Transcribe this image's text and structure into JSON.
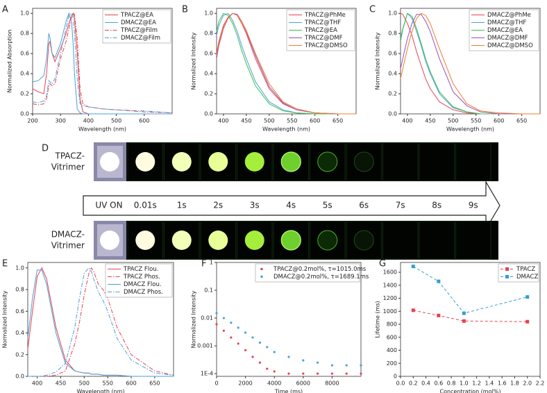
{
  "chart_data": [
    {
      "type": "line",
      "panel": "A",
      "xlabel": "Wavelength (nm)",
      "ylabel": "Normalized Absorption",
      "x": [
        200,
        220,
        240,
        250,
        258,
        262,
        270,
        280,
        300,
        320,
        330,
        340,
        345,
        350,
        360,
        370,
        380,
        400,
        450,
        500,
        600,
        700
      ],
      "series": [
        {
          "name": "TPACZ@EA",
          "color": "#e8414e",
          "style": "solid",
          "values": [
            0.25,
            0.22,
            0.2,
            0.4,
            0.7,
            0.72,
            0.6,
            0.52,
            0.65,
            0.8,
            0.9,
            0.98,
            1.0,
            0.95,
            0.6,
            0.15,
            0.02,
            0,
            0,
            0,
            0,
            0
          ]
        },
        {
          "name": "DMACZ@EA",
          "color": "#4a9fd8",
          "style": "solid",
          "values": [
            0.32,
            0.33,
            0.38,
            0.55,
            0.8,
            0.76,
            0.6,
            0.56,
            0.7,
            0.92,
            1.0,
            0.9,
            0.7,
            0.4,
            0.05,
            0.01,
            0,
            0,
            0,
            0,
            0,
            0
          ]
        },
        {
          "name": "TPACZ@Film",
          "color": "#e8414e",
          "style": "dashdot",
          "values": [
            0.1,
            0.09,
            0.1,
            0.15,
            0.28,
            0.3,
            0.28,
            0.3,
            0.55,
            0.72,
            0.85,
            0.97,
            1.0,
            0.99,
            0.75,
            0.25,
            0.1,
            0.07,
            0.05,
            0.04,
            0.02,
            0.01
          ]
        },
        {
          "name": "DMACZ@Film",
          "color": "#4a9fd8",
          "style": "dashdot",
          "values": [
            0.12,
            0.11,
            0.13,
            0.18,
            0.33,
            0.32,
            0.3,
            0.35,
            0.6,
            0.85,
            0.98,
            1.0,
            0.95,
            0.8,
            0.35,
            0.1,
            0.08,
            0.07,
            0.05,
            0.04,
            0.03,
            0.01
          ]
        }
      ],
      "xlim": [
        200,
        700
      ],
      "xticks": [
        200,
        300,
        400,
        500,
        600
      ],
      "ylim": [
        0,
        1.05
      ],
      "yticks": [
        {
          "value": 0,
          "label": "0.0"
        },
        0.2,
        0.4,
        0.6,
        0.8,
        {
          "value": 1,
          "label": "1.0"
        }
      ],
      "legend": "top-right"
    },
    {
      "type": "line",
      "panel": "B",
      "xlabel": "Wavelength (nm)",
      "ylabel": "Normalized Intensity",
      "x": [
        385,
        390,
        400,
        410,
        420,
        430,
        440,
        450,
        470,
        500,
        530,
        560,
        600,
        650,
        690
      ],
      "series": [
        {
          "name": "TPACZ@PhMe",
          "color": "#e8414e",
          "style": "solid",
          "values": [
            0.6,
            0.72,
            0.88,
            0.96,
            1.0,
            0.98,
            0.9,
            0.8,
            0.55,
            0.25,
            0.1,
            0.04,
            0.01,
            0,
            0
          ]
        },
        {
          "name": "TPACZ@THF",
          "color": "#4a9fd8",
          "style": "solid",
          "values": [
            0.78,
            0.88,
            0.98,
            1.0,
            0.93,
            0.82,
            0.68,
            0.55,
            0.32,
            0.12,
            0.04,
            0.01,
            0,
            0,
            0
          ]
        },
        {
          "name": "TPACZ@EA",
          "color": "#3cbf4a",
          "style": "solid",
          "values": [
            0.82,
            0.92,
            1.0,
            0.98,
            0.9,
            0.78,
            0.63,
            0.5,
            0.28,
            0.1,
            0.03,
            0.01,
            0,
            0,
            0
          ]
        },
        {
          "name": "TPACZ@DMF",
          "color": "#9a4fb8",
          "style": "solid",
          "values": [
            0.55,
            0.68,
            0.85,
            0.95,
            1.0,
            0.99,
            0.92,
            0.82,
            0.58,
            0.27,
            0.11,
            0.04,
            0.01,
            0,
            0
          ]
        },
        {
          "name": "TPACZ@DMSO",
          "color": "#f07b2c",
          "style": "solid",
          "values": [
            0.58,
            0.7,
            0.86,
            0.95,
            1.0,
            0.98,
            0.92,
            0.83,
            0.6,
            0.3,
            0.12,
            0.05,
            0.01,
            0,
            0
          ]
        }
      ],
      "xlim": [
        385,
        690
      ],
      "xticks": [
        400,
        450,
        500,
        550,
        600,
        650
      ],
      "ylim": [
        0,
        1.05
      ],
      "yticks": [
        {
          "value": 0,
          "label": "0.0"
        },
        0.2,
        0.4,
        0.6,
        0.8,
        {
          "value": 1,
          "label": "1.0"
        }
      ],
      "legend": "top-right"
    },
    {
      "type": "line",
      "panel": "C",
      "xlabel": "Wavelength (nm)",
      "ylabel": "Normalized Intensity",
      "x": [
        385,
        390,
        400,
        410,
        420,
        430,
        440,
        450,
        470,
        500,
        530,
        560,
        600,
        650,
        690
      ],
      "series": [
        {
          "name": "DMACZ@PhMe",
          "color": "#e8414e",
          "style": "solid",
          "values": [
            1.0,
            0.99,
            0.9,
            0.78,
            0.62,
            0.48,
            0.35,
            0.25,
            0.12,
            0.04,
            0.01,
            0,
            0,
            0,
            0
          ]
        },
        {
          "name": "DMACZ@THF",
          "color": "#4a9fd8",
          "style": "solid",
          "values": [
            0.75,
            0.85,
            1.0,
            0.95,
            0.82,
            0.68,
            0.52,
            0.4,
            0.2,
            0.06,
            0.02,
            0,
            0,
            0,
            0
          ]
        },
        {
          "name": "DMACZ@EA",
          "color": "#3cbf4a",
          "style": "solid",
          "values": [
            0.72,
            0.84,
            1.0,
            0.97,
            0.85,
            0.7,
            0.55,
            0.42,
            0.22,
            0.07,
            0.02,
            0,
            0,
            0,
            0
          ]
        },
        {
          "name": "DMACZ@DMF",
          "color": "#9a4fb8",
          "style": "solid",
          "values": [
            0.45,
            0.55,
            0.75,
            0.9,
            0.99,
            0.99,
            0.92,
            0.82,
            0.55,
            0.22,
            0.08,
            0.02,
            0,
            0,
            0
          ]
        },
        {
          "name": "DMACZ@DMSO",
          "color": "#f07b2c",
          "style": "solid",
          "values": [
            0.35,
            0.45,
            0.65,
            0.82,
            0.95,
            1.0,
            0.98,
            0.9,
            0.65,
            0.3,
            0.1,
            0.03,
            0.01,
            0,
            0
          ]
        }
      ],
      "xlim": [
        385,
        690
      ],
      "xticks": [
        400,
        450,
        500,
        550,
        600,
        650
      ],
      "ylim": [
        0,
        1.05
      ],
      "yticks": [
        {
          "value": 0,
          "label": "0.0"
        },
        0.2,
        0.4,
        0.6,
        0.8,
        {
          "value": 1,
          "label": "1.0"
        }
      ],
      "legend": "top-right"
    },
    {
      "type": "line",
      "panel": "E",
      "xlabel": "Wavelength (nm)",
      "ylabel": "Normalized Intensity",
      "x": [
        380,
        390,
        400,
        410,
        420,
        440,
        460,
        480,
        490,
        500,
        510,
        515,
        520,
        530,
        540,
        550,
        570,
        600,
        650,
        690
      ],
      "series": [
        {
          "name": "TPACZ Flou.",
          "color": "#e8414e",
          "style": "solid",
          "values": [
            0.25,
            0.6,
            0.92,
            1.0,
            0.9,
            0.45,
            0.15,
            0.05,
            0.04,
            0.03,
            0.03,
            0.02,
            0.02,
            0.02,
            0.01,
            0.01,
            0.01,
            0,
            0,
            0
          ]
        },
        {
          "name": "TPACZ Phos.",
          "color": "#e8414e",
          "style": "dashdot",
          "values": [
            0,
            0,
            0,
            0,
            0,
            0.01,
            0.05,
            0.3,
            0.5,
            0.75,
            0.95,
            1.0,
            0.97,
            0.85,
            0.8,
            0.72,
            0.45,
            0.2,
            0.05,
            0.01
          ]
        },
        {
          "name": "DMACZ Flou.",
          "color": "#4a9fd8",
          "style": "solid",
          "values": [
            0.35,
            0.72,
            0.98,
            0.98,
            0.85,
            0.4,
            0.12,
            0.05,
            0.04,
            0.03,
            0.03,
            0.02,
            0.02,
            0.02,
            0.01,
            0.01,
            0.01,
            0,
            0,
            0
          ]
        },
        {
          "name": "DMACZ Phos.",
          "color": "#4a9fd8",
          "style": "dashdot",
          "values": [
            0,
            0,
            0,
            0,
            0.01,
            0.04,
            0.12,
            0.45,
            0.72,
            0.95,
            1.0,
            0.97,
            0.9,
            0.78,
            0.7,
            0.6,
            0.35,
            0.15,
            0.03,
            0.01
          ]
        }
      ],
      "xlim": [
        380,
        690
      ],
      "xticks": [
        400,
        450,
        500,
        550,
        600,
        650
      ],
      "ylim": [
        0,
        1.05
      ],
      "yticks": [
        {
          "value": 0,
          "label": "0.0"
        },
        0.2,
        0.4,
        0.6,
        0.8,
        {
          "value": 1,
          "label": "1.0"
        }
      ],
      "legend": "top-right"
    },
    {
      "type": "scatter",
      "panel": "F",
      "xlabel": "Time (ms)",
      "ylabel": "Normalized Intensity",
      "log_y": true,
      "x": [
        0,
        500,
        1000,
        1500,
        2000,
        2500,
        3000,
        3500,
        4000,
        5000,
        6000,
        7000,
        8000,
        9000,
        10000
      ],
      "series": [
        {
          "name": "TPACZ@0.2mol%, τ=1015.0ms",
          "color": "#e8414e",
          "values": [
            0.006,
            0.0035,
            0.002,
            0.0012,
            0.0007,
            0.0004,
            0.00025,
            0.00015,
            0.00012,
            0.0001,
            0.0001,
            0.0001,
            0.0001,
            0.0001,
            0.0001
          ]
        },
        {
          "name": "DMACZ@0.2mol%, τ=1689.1ms",
          "color": "#4a9fd8",
          "values": [
            0.015,
            0.01,
            0.0068,
            0.0045,
            0.003,
            0.002,
            0.0013,
            0.0009,
            0.0006,
            0.0004,
            0.0003,
            0.00025,
            0.0002,
            0.0002,
            0.0002
          ]
        }
      ],
      "xlim": [
        0,
        10000
      ],
      "xticks": [
        0,
        2000,
        4000,
        6000,
        8000
      ],
      "ylim": [
        8e-05,
        1
      ],
      "yticks": [
        {
          "value": 0.0001,
          "label": "1E-4"
        },
        0.001,
        0.01,
        0.1,
        1
      ],
      "legend": "top-right"
    },
    {
      "type": "line",
      "panel": "G",
      "xlabel": "Concentration (mol%)",
      "ylabel": "Lifetime (ms)",
      "markers": true,
      "x": [
        0.2,
        0.6,
        1.0,
        2.0
      ],
      "series": [
        {
          "name": "TPACZ",
          "color": "#e8414e",
          "style": "dashed",
          "values": [
            1015,
            935,
            850,
            840
          ]
        },
        {
          "name": "DMACZ",
          "color": "#2f9fd0",
          "style": "dashed",
          "values": [
            1689,
            1460,
            970,
            1220
          ]
        }
      ],
      "xlim": [
        0,
        2.2
      ],
      "xticks": [
        {
          "value": 0,
          "label": "0.0"
        },
        0.2,
        0.4,
        0.6,
        0.8,
        {
          "value": 1,
          "label": "1.0"
        },
        1.2,
        1.4,
        1.6,
        1.8,
        {
          "value": 2,
          "label": "2.0"
        },
        2.2
      ],
      "ylim": [
        0,
        1750
      ],
      "yticks": [
        0,
        200,
        400,
        600,
        800,
        1000,
        1200,
        1400,
        1600
      ],
      "legend": "top-right"
    }
  ],
  "photo_panel": {
    "panel": "D",
    "rows": [
      [
        "TPACZ-",
        "Vitrimer"
      ],
      [
        "DMACZ-",
        "Vitrimer"
      ]
    ],
    "timeline": [
      "UV ON",
      "0.01s",
      "1s",
      "2s",
      "3s",
      "4s",
      "5s",
      "6s",
      "7s",
      "8s",
      "9s"
    ]
  }
}
